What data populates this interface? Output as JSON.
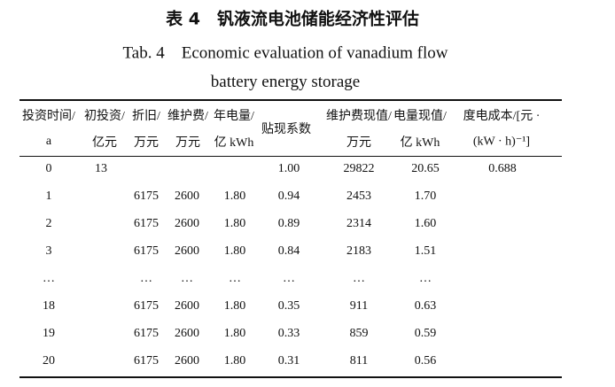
{
  "title": {
    "cn": "表 4　钒液流电池储能经济性评估",
    "en_line1": "Tab. 4　Economic evaluation of vanadium flow",
    "en_line2": "battery energy storage"
  },
  "table": {
    "header": [
      [
        "投资时间/",
        "a"
      ],
      [
        "初投资/",
        "亿元"
      ],
      [
        "折旧/",
        "万元"
      ],
      [
        "维护费/",
        "万元"
      ],
      [
        "年电量/",
        "亿 kWh"
      ],
      [
        "贴现系数"
      ],
      [
        "维护费现值/",
        "万元"
      ],
      [
        "电量现值/",
        "亿 kWh"
      ],
      [
        "度电成本/[元 ·",
        "(kW · h)⁻¹]"
      ]
    ],
    "rows": [
      [
        "0",
        "13",
        null,
        null,
        null,
        "1.00",
        "29822",
        "20.65",
        "0.688"
      ],
      [
        "1",
        null,
        "6175",
        "2600",
        "1.80",
        "0.94",
        "2453",
        "1.70",
        null
      ],
      [
        "2",
        null,
        "6175",
        "2600",
        "1.80",
        "0.89",
        "2314",
        "1.60",
        null
      ],
      [
        "3",
        null,
        "6175",
        "2600",
        "1.80",
        "0.84",
        "2183",
        "1.51",
        null
      ],
      [
        "…",
        null,
        "…",
        "…",
        "…",
        "…",
        "…",
        "…",
        null
      ],
      [
        "18",
        null,
        "6175",
        "2600",
        "1.80",
        "0.35",
        "911",
        "0.63",
        null
      ],
      [
        "19",
        null,
        "6175",
        "2600",
        "1.80",
        "0.33",
        "859",
        "0.59",
        null
      ],
      [
        "20",
        null,
        "6175",
        "2600",
        "1.80",
        "0.31",
        "811",
        "0.56",
        null
      ]
    ]
  }
}
